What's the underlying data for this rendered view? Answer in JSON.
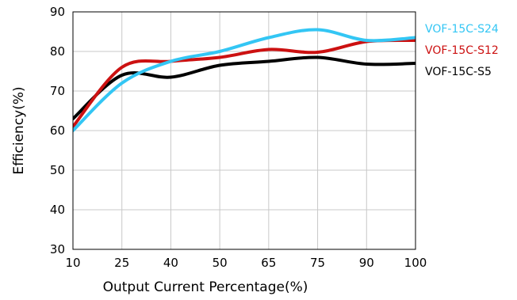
{
  "chart_data": {
    "type": "line",
    "xlabel": "Output Current Percentage(%)",
    "ylabel": "Efficiency(%)",
    "x": [
      10,
      25,
      40,
      50,
      65,
      75,
      90,
      100
    ],
    "ylim": [
      30,
      90
    ],
    "yticks": [
      30,
      40,
      50,
      60,
      70,
      80,
      90
    ],
    "grid": true,
    "legend_position": "right",
    "series": [
      {
        "name": "VOF-15C-S5",
        "color": "#000000",
        "values": [
          63,
          74,
          73.5,
          76.5,
          77.5,
          78.5,
          76.8,
          77
        ]
      },
      {
        "name": "VOF-15C-S12",
        "color": "#cc1111",
        "values": [
          61,
          76,
          77.5,
          78.5,
          80.5,
          79.8,
          82.5,
          82.8
        ]
      },
      {
        "name": "VOF-15C-S24",
        "color": "#33c6f4",
        "values": [
          60,
          72,
          77.5,
          80,
          83.5,
          85.5,
          82.8,
          83.5
        ]
      }
    ],
    "overlap_color": "#9b3d6b"
  }
}
